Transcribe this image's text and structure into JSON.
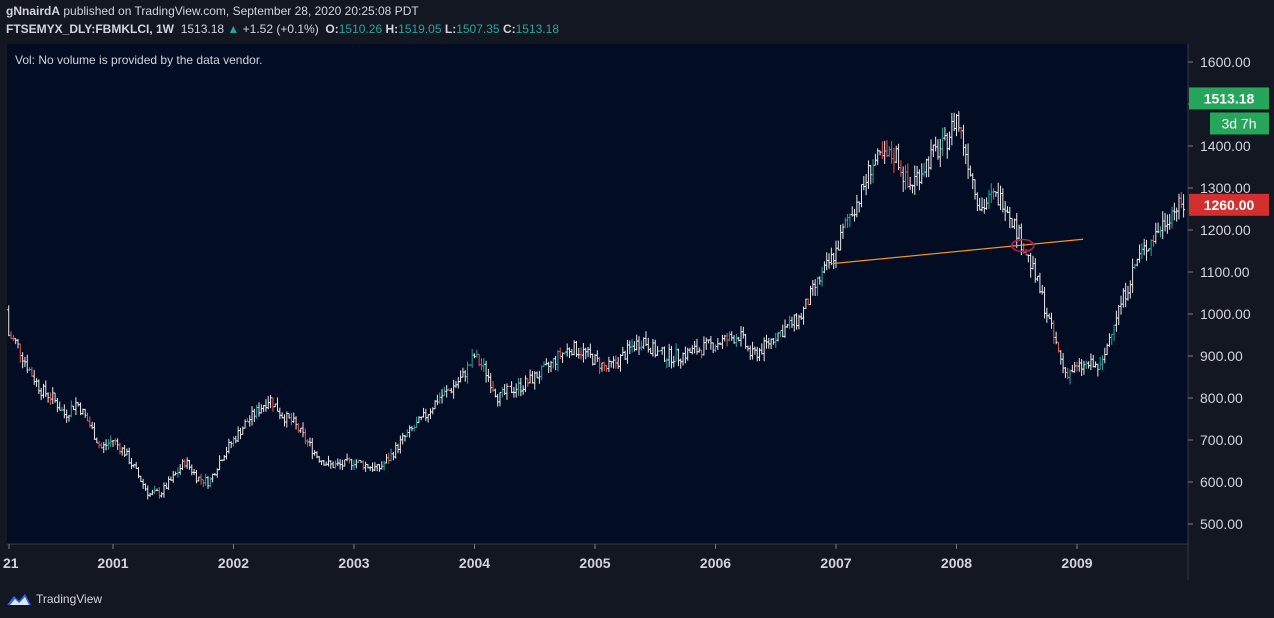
{
  "header": {
    "author": "gNnairdA",
    "published_text": "published on TradingView.com, September 28, 2020 20:25:08 PDT"
  },
  "legend": {
    "symbol": "FTSEMYX_DLY:FBMKLCI, 1W",
    "last": "1513.18",
    "arrow": "▲",
    "change": "+1.52 (+0.1%)",
    "o_label": "O:",
    "o_val": "1510.26",
    "h_label": "H:",
    "h_val": "1519.05",
    "l_label": "L:",
    "l_val": "1507.35",
    "c_label": "C:",
    "c_val": "1513.18"
  },
  "vol_note": "Vol: No volume is provided by the data vendor.",
  "price_tag": {
    "value": "1513.18",
    "countdown": "3d 7h"
  },
  "alert_tag": {
    "value": "1260.00"
  },
  "footer": {
    "brand": "TradingView"
  },
  "colors": {
    "background": "#131722",
    "plot_bg": "#020d24",
    "up": "#26a69a",
    "down": "#ef5350",
    "bar_neutral": "#e8e8e8",
    "trendline": "#f7931a",
    "price_tag": "#26a65b",
    "alert_tag": "#d32f2f"
  },
  "chart_data": {
    "type": "ohlc",
    "title": "FTSEMYX_DLY:FBMKLCI, 1W",
    "y_ticks": [
      "500.00",
      "600.00",
      "700.00",
      "800.00",
      "900.00",
      "1000.00",
      "1100.00",
      "1200.00",
      "1300.00",
      "1400.00",
      "1500.00",
      "1600.00"
    ],
    "ylim": [
      500,
      1600
    ],
    "x_ticks": [
      "21",
      "2001",
      "2002",
      "2003",
      "2004",
      "2005",
      "2006",
      "2007",
      "2008",
      "2009"
    ],
    "xlim": [
      2000.0,
      2009.9
    ],
    "approx_weekly_closes": [
      [
        2000.0,
        1010
      ],
      [
        2000.1,
        960
      ],
      [
        2000.2,
        930
      ],
      [
        2000.3,
        870
      ],
      [
        2000.4,
        820
      ],
      [
        2000.5,
        800
      ],
      [
        2000.6,
        760
      ],
      [
        2000.7,
        790
      ],
      [
        2000.8,
        740
      ],
      [
        2000.9,
        680
      ],
      [
        2001.0,
        700
      ],
      [
        2001.1,
        670
      ],
      [
        2001.2,
        620
      ],
      [
        2001.3,
        570
      ],
      [
        2001.4,
        575
      ],
      [
        2001.5,
        610
      ],
      [
        2001.6,
        650
      ],
      [
        2001.7,
        610
      ],
      [
        2001.8,
        600
      ],
      [
        2001.9,
        660
      ],
      [
        2002.0,
        700
      ],
      [
        2002.1,
        740
      ],
      [
        2002.2,
        770
      ],
      [
        2002.3,
        800
      ],
      [
        2002.4,
        760
      ],
      [
        2002.5,
        740
      ],
      [
        2002.6,
        700
      ],
      [
        2002.7,
        660
      ],
      [
        2002.8,
        640
      ],
      [
        2002.9,
        640
      ],
      [
        2003.0,
        650
      ],
      [
        2003.1,
        640
      ],
      [
        2003.2,
        630
      ],
      [
        2003.3,
        660
      ],
      [
        2003.4,
        700
      ],
      [
        2003.5,
        730
      ],
      [
        2003.6,
        760
      ],
      [
        2003.7,
        800
      ],
      [
        2003.8,
        820
      ],
      [
        2003.9,
        850
      ],
      [
        2004.0,
        900
      ],
      [
        2004.1,
        860
      ],
      [
        2004.2,
        800
      ],
      [
        2004.3,
        820
      ],
      [
        2004.4,
        830
      ],
      [
        2004.5,
        850
      ],
      [
        2004.6,
        870
      ],
      [
        2004.7,
        900
      ],
      [
        2004.8,
        920
      ],
      [
        2004.9,
        910
      ],
      [
        2005.0,
        890
      ],
      [
        2005.1,
        870
      ],
      [
        2005.2,
        890
      ],
      [
        2005.3,
        920
      ],
      [
        2005.4,
        940
      ],
      [
        2005.5,
        910
      ],
      [
        2005.6,
        900
      ],
      [
        2005.7,
        900
      ],
      [
        2005.8,
        910
      ],
      [
        2005.9,
        920
      ],
      [
        2006.0,
        930
      ],
      [
        2006.1,
        940
      ],
      [
        2006.2,
        950
      ],
      [
        2006.3,
        900
      ],
      [
        2006.4,
        920
      ],
      [
        2006.5,
        950
      ],
      [
        2006.6,
        970
      ],
      [
        2006.7,
        990
      ],
      [
        2006.8,
        1050
      ],
      [
        2006.9,
        1100
      ],
      [
        2007.0,
        1150
      ],
      [
        2007.1,
        1230
      ],
      [
        2007.2,
        1280
      ],
      [
        2007.3,
        1360
      ],
      [
        2007.4,
        1370
      ],
      [
        2007.5,
        1380
      ],
      [
        2007.6,
        1300
      ],
      [
        2007.7,
        1340
      ],
      [
        2007.8,
        1380
      ],
      [
        2007.9,
        1400
      ],
      [
        2008.0,
        1470
      ],
      [
        2008.1,
        1360
      ],
      [
        2008.2,
        1250
      ],
      [
        2008.3,
        1280
      ],
      [
        2008.4,
        1270
      ],
      [
        2008.5,
        1200
      ],
      [
        2008.6,
        1130
      ],
      [
        2008.7,
        1050
      ],
      [
        2008.8,
        950
      ],
      [
        2008.9,
        860
      ],
      [
        2009.0,
        870
      ],
      [
        2009.1,
        880
      ],
      [
        2009.2,
        870
      ],
      [
        2009.3,
        980
      ],
      [
        2009.4,
        1050
      ],
      [
        2009.5,
        1130
      ],
      [
        2009.6,
        1170
      ],
      [
        2009.7,
        1210
      ],
      [
        2009.8,
        1250
      ],
      [
        2009.9,
        1260
      ]
    ],
    "trendline": {
      "start": [
        2006.97,
        1120
      ],
      "end": [
        2009.05,
        1178
      ],
      "label": ""
    },
    "marker_ellipse_at": [
      2008.55,
      1163
    ]
  }
}
